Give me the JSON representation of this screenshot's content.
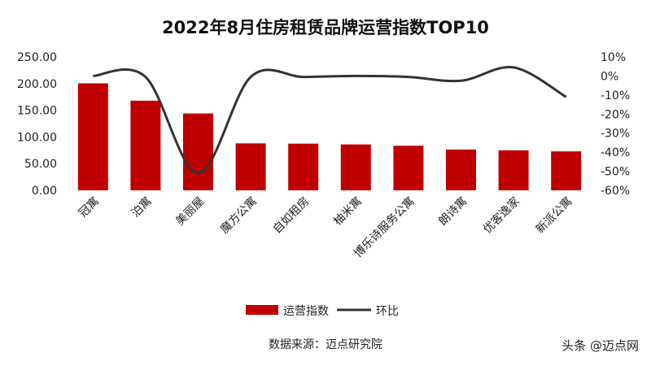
{
  "chart_data": {
    "type": "bar",
    "title": "2022年8月住房租赁品牌运营指数TOP10",
    "categories": [
      "冠寓",
      "泊寓",
      "美丽屋",
      "魔方公寓",
      "自如租房",
      "柚米寓",
      "博乐诗服务公寓",
      "朗诗寓",
      "优客逸家",
      "新派公寓"
    ],
    "series": [
      {
        "name": "运营指数",
        "type": "bar",
        "axis": "left",
        "color": "#c00000",
        "values": [
          200.5,
          168,
          144,
          88,
          87.5,
          86,
          83.5,
          76.5,
          75,
          73
        ]
      },
      {
        "name": "环比",
        "type": "line",
        "axis": "right",
        "color": "#333333",
        "values": [
          0.0,
          -0.5,
          -51.0,
          -0.5,
          -0.5,
          0.0,
          -0.5,
          -2.5,
          4.5,
          -11.0
        ]
      }
    ],
    "y_left": {
      "ylim": [
        0,
        250
      ],
      "ticks": [
        "0.00",
        "50.00",
        "100.00",
        "150.00",
        "200.00",
        "250.00"
      ],
      "tick_values": [
        0,
        50,
        100,
        150,
        200,
        250
      ]
    },
    "y_right": {
      "ylim": [
        -60,
        10
      ],
      "ticks": [
        "-60%",
        "-50%",
        "-40%",
        "-30%",
        "-20%",
        "-10%",
        "0%",
        "10%"
      ],
      "tick_values": [
        -60,
        -50,
        -40,
        -30,
        -20,
        -10,
        0,
        10
      ]
    },
    "grid": false,
    "legend_position": "bottom"
  },
  "source": "数据来源：迈点研究院",
  "watermark": "头条 @迈点网"
}
